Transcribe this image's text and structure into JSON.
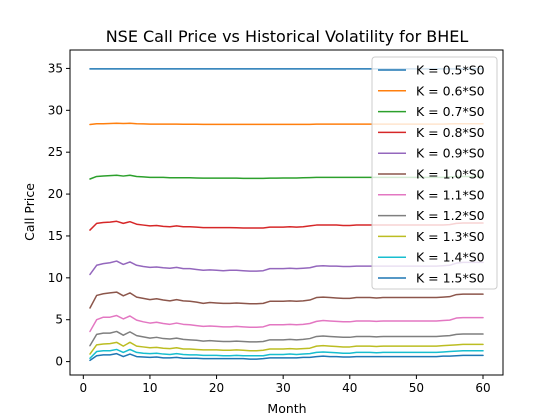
{
  "chart_data": {
    "type": "line",
    "title": "NSE Call Price vs Historical Volatility for BHEL",
    "xlabel": "Month",
    "ylabel": "Call Price",
    "xlim": [
      -2,
      63
    ],
    "ylim": [
      -1.6,
      37.2
    ],
    "xticks": [
      0,
      10,
      20,
      30,
      40,
      50,
      60
    ],
    "yticks": [
      0,
      5,
      10,
      15,
      20,
      25,
      30,
      35
    ],
    "grid": false,
    "legend_position": "upper right",
    "x": [
      1,
      2,
      3,
      4,
      5,
      6,
      7,
      8,
      9,
      10,
      11,
      12,
      13,
      14,
      15,
      16,
      17,
      18,
      19,
      20,
      21,
      22,
      23,
      24,
      25,
      26,
      27,
      28,
      29,
      30,
      31,
      32,
      33,
      34,
      35,
      36,
      37,
      38,
      39,
      40,
      41,
      42,
      43,
      44,
      45,
      46,
      47,
      48,
      49,
      50,
      51,
      52,
      53,
      54,
      55,
      56,
      57,
      58,
      59,
      60
    ],
    "series": [
      {
        "name": "K = 0.5*S0",
        "color": "#1f77b4",
        "values": [
          34.95,
          34.95,
          34.95,
          34.95,
          34.95,
          34.95,
          34.95,
          34.95,
          34.95,
          34.95,
          34.95,
          34.95,
          34.95,
          34.95,
          34.95,
          34.95,
          34.95,
          34.95,
          34.95,
          34.95,
          34.95,
          34.95,
          34.95,
          34.95,
          34.95,
          34.95,
          34.95,
          34.95,
          34.95,
          34.95,
          34.95,
          34.95,
          34.95,
          34.95,
          34.95,
          34.95,
          34.95,
          34.95,
          34.95,
          34.95,
          34.95,
          34.95,
          34.95,
          34.95,
          34.95,
          34.95,
          34.95,
          34.95,
          34.95,
          34.95,
          34.95,
          34.95,
          34.95,
          34.95,
          34.95,
          34.95,
          34.95,
          34.95,
          34.95,
          34.95
        ]
      },
      {
        "name": "K = 0.6*S0",
        "color": "#ff7f0e",
        "values": [
          28.3,
          28.4,
          28.4,
          28.42,
          28.45,
          28.42,
          28.45,
          28.4,
          28.38,
          28.35,
          28.35,
          28.35,
          28.35,
          28.35,
          28.33,
          28.33,
          28.33,
          28.32,
          28.32,
          28.32,
          28.32,
          28.32,
          28.32,
          28.32,
          28.32,
          28.32,
          28.32,
          28.32,
          28.32,
          28.32,
          28.32,
          28.32,
          28.32,
          28.32,
          28.35,
          28.35,
          28.35,
          28.35,
          28.35,
          28.35,
          28.35,
          28.35,
          28.35,
          28.35,
          28.35,
          28.35,
          28.35,
          28.35,
          28.35,
          28.35,
          28.35,
          28.35,
          28.35,
          28.35,
          28.38,
          28.4,
          28.4,
          28.4,
          28.4,
          28.4
        ]
      },
      {
        "name": "K = 0.7*S0",
        "color": "#2ca02c",
        "values": [
          21.8,
          22.1,
          22.15,
          22.2,
          22.25,
          22.15,
          22.25,
          22.1,
          22.05,
          22.0,
          22.0,
          22.0,
          21.95,
          21.95,
          21.95,
          21.95,
          21.92,
          21.9,
          21.9,
          21.9,
          21.9,
          21.9,
          21.9,
          21.88,
          21.88,
          21.88,
          21.88,
          21.9,
          21.9,
          21.92,
          21.92,
          21.92,
          21.95,
          21.97,
          22.0,
          22.0,
          22.0,
          22.0,
          22.0,
          22.0,
          22.0,
          22.0,
          22.0,
          22.0,
          22.0,
          22.0,
          22.0,
          22.0,
          22.0,
          22.0,
          22.0,
          22.0,
          22.0,
          22.0,
          22.05,
          22.1,
          22.1,
          22.1,
          22.1,
          22.1
        ]
      },
      {
        "name": "K = 0.8*S0",
        "color": "#d62728",
        "values": [
          15.7,
          16.5,
          16.6,
          16.65,
          16.75,
          16.5,
          16.7,
          16.4,
          16.3,
          16.2,
          16.25,
          16.15,
          16.1,
          16.2,
          16.1,
          16.1,
          16.05,
          16.0,
          16.0,
          16.0,
          16.0,
          16.0,
          15.98,
          15.95,
          15.95,
          15.95,
          15.95,
          16.05,
          16.05,
          16.05,
          16.1,
          16.05,
          16.1,
          16.2,
          16.3,
          16.3,
          16.3,
          16.3,
          16.25,
          16.25,
          16.3,
          16.3,
          16.3,
          16.3,
          16.3,
          16.3,
          16.3,
          16.3,
          16.3,
          16.3,
          16.3,
          16.3,
          16.3,
          16.3,
          16.35,
          16.5,
          16.55,
          16.55,
          16.55,
          16.55
        ]
      },
      {
        "name": "K = 0.9*S0",
        "color": "#9467bd",
        "values": [
          10.4,
          11.5,
          11.7,
          11.8,
          12.0,
          11.6,
          11.9,
          11.5,
          11.35,
          11.25,
          11.3,
          11.2,
          11.15,
          11.25,
          11.1,
          11.1,
          11.0,
          10.9,
          10.95,
          10.9,
          10.85,
          10.9,
          10.9,
          10.85,
          10.8,
          10.8,
          10.85,
          11.1,
          11.1,
          11.1,
          11.15,
          11.1,
          11.15,
          11.2,
          11.4,
          11.45,
          11.4,
          11.4,
          11.35,
          11.35,
          11.4,
          11.4,
          11.4,
          11.4,
          11.4,
          11.4,
          11.4,
          11.4,
          11.4,
          11.4,
          11.4,
          11.4,
          11.4,
          11.45,
          11.5,
          11.75,
          11.85,
          11.85,
          11.85,
          11.85
        ]
      },
      {
        "name": "K = 1.0*S0",
        "color": "#8c564b",
        "values": [
          6.4,
          7.9,
          8.1,
          8.2,
          8.3,
          7.85,
          8.2,
          7.7,
          7.55,
          7.4,
          7.5,
          7.35,
          7.25,
          7.4,
          7.25,
          7.2,
          7.1,
          6.95,
          7.05,
          7.0,
          6.95,
          6.95,
          7.0,
          6.95,
          6.9,
          6.9,
          6.95,
          7.2,
          7.2,
          7.2,
          7.25,
          7.2,
          7.25,
          7.35,
          7.65,
          7.7,
          7.65,
          7.6,
          7.55,
          7.55,
          7.65,
          7.65,
          7.65,
          7.6,
          7.65,
          7.65,
          7.65,
          7.65,
          7.65,
          7.65,
          7.65,
          7.65,
          7.65,
          7.7,
          7.75,
          8.0,
          8.05,
          8.05,
          8.05,
          8.05
        ]
      },
      {
        "name": "K = 1.1*S0",
        "color": "#e377c2",
        "values": [
          3.6,
          5.0,
          5.3,
          5.3,
          5.5,
          5.1,
          5.45,
          4.95,
          4.75,
          4.6,
          4.7,
          4.55,
          4.45,
          4.6,
          4.45,
          4.4,
          4.3,
          4.2,
          4.25,
          4.2,
          4.15,
          4.15,
          4.2,
          4.15,
          4.1,
          4.1,
          4.15,
          4.4,
          4.4,
          4.4,
          4.45,
          4.4,
          4.45,
          4.55,
          4.8,
          4.9,
          4.85,
          4.8,
          4.75,
          4.75,
          4.85,
          4.85,
          4.85,
          4.8,
          4.85,
          4.85,
          4.85,
          4.85,
          4.85,
          4.85,
          4.85,
          4.85,
          4.85,
          4.9,
          4.95,
          5.2,
          5.25,
          5.25,
          5.25,
          5.25
        ]
      },
      {
        "name": "K = 1.2*S0",
        "color": "#7f7f7f",
        "values": [
          1.9,
          3.25,
          3.4,
          3.4,
          3.6,
          3.15,
          3.55,
          3.1,
          2.95,
          2.8,
          2.9,
          2.75,
          2.7,
          2.8,
          2.65,
          2.6,
          2.55,
          2.45,
          2.5,
          2.45,
          2.4,
          2.4,
          2.45,
          2.4,
          2.35,
          2.35,
          2.4,
          2.6,
          2.6,
          2.6,
          2.65,
          2.6,
          2.65,
          2.75,
          3.0,
          3.05,
          3.0,
          2.95,
          2.9,
          2.9,
          3.0,
          3.0,
          3.0,
          2.95,
          3.0,
          3.0,
          3.0,
          3.0,
          3.0,
          3.0,
          3.0,
          3.0,
          3.0,
          3.05,
          3.1,
          3.25,
          3.3,
          3.3,
          3.3,
          3.3
        ]
      },
      {
        "name": "K = 1.3*S0",
        "color": "#bcbd22",
        "values": [
          0.9,
          2.0,
          2.1,
          2.15,
          2.3,
          1.85,
          2.3,
          1.85,
          1.75,
          1.65,
          1.7,
          1.6,
          1.55,
          1.65,
          1.5,
          1.5,
          1.45,
          1.4,
          1.4,
          1.4,
          1.35,
          1.35,
          1.4,
          1.35,
          1.3,
          1.3,
          1.35,
          1.5,
          1.5,
          1.5,
          1.55,
          1.5,
          1.55,
          1.6,
          1.85,
          1.9,
          1.85,
          1.8,
          1.75,
          1.75,
          1.85,
          1.85,
          1.85,
          1.8,
          1.85,
          1.85,
          1.85,
          1.85,
          1.85,
          1.85,
          1.85,
          1.85,
          1.85,
          1.9,
          1.95,
          2.0,
          2.05,
          2.05,
          2.05,
          2.05
        ]
      },
      {
        "name": "K = 1.4*S0",
        "color": "#17becf",
        "values": [
          0.4,
          1.2,
          1.3,
          1.3,
          1.45,
          1.1,
          1.45,
          1.1,
          1.0,
          0.95,
          1.0,
          0.9,
          0.85,
          0.95,
          0.85,
          0.8,
          0.8,
          0.75,
          0.75,
          0.75,
          0.7,
          0.7,
          0.75,
          0.7,
          0.7,
          0.7,
          0.7,
          0.85,
          0.85,
          0.85,
          0.9,
          0.85,
          0.9,
          0.95,
          1.1,
          1.15,
          1.1,
          1.05,
          1.0,
          1.0,
          1.1,
          1.1,
          1.1,
          1.05,
          1.1,
          1.1,
          1.1,
          1.1,
          1.1,
          1.1,
          1.1,
          1.1,
          1.1,
          1.15,
          1.2,
          1.25,
          1.3,
          1.3,
          1.3,
          1.3
        ]
      },
      {
        "name": "K = 1.5*S0",
        "color": "#1f77b4",
        "values": [
          0.15,
          0.7,
          0.8,
          0.8,
          0.95,
          0.6,
          0.9,
          0.6,
          0.55,
          0.5,
          0.55,
          0.45,
          0.45,
          0.5,
          0.4,
          0.4,
          0.4,
          0.35,
          0.35,
          0.35,
          0.35,
          0.35,
          0.35,
          0.35,
          0.3,
          0.3,
          0.35,
          0.45,
          0.45,
          0.45,
          0.45,
          0.45,
          0.5,
          0.5,
          0.6,
          0.65,
          0.6,
          0.6,
          0.55,
          0.55,
          0.6,
          0.6,
          0.6,
          0.6,
          0.6,
          0.6,
          0.6,
          0.6,
          0.6,
          0.6,
          0.6,
          0.6,
          0.6,
          0.65,
          0.65,
          0.7,
          0.75,
          0.75,
          0.75,
          0.75
        ]
      }
    ]
  }
}
